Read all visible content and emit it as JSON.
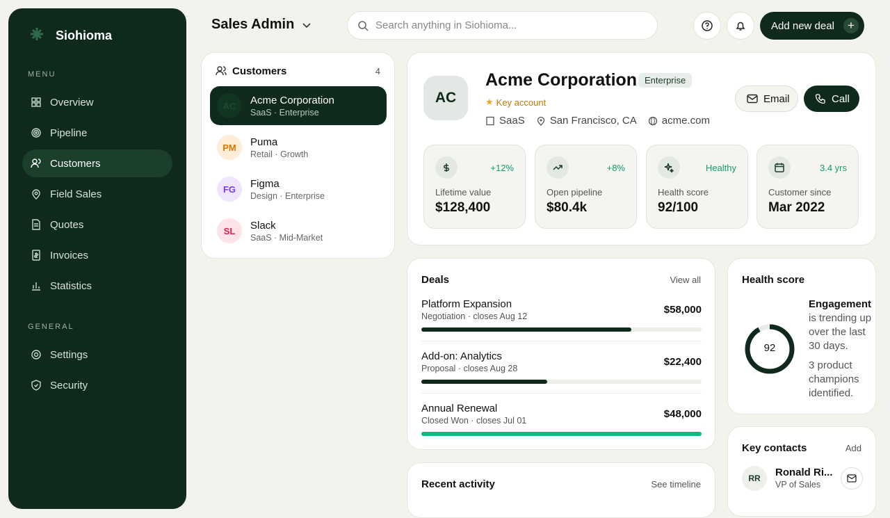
{
  "sidebar": {
    "brand": "Siohioma",
    "menu_label": "MENU",
    "menu": [
      "Overview",
      "Pipeline",
      "Customers",
      "Field Sales",
      "Quotes",
      "Invoices",
      "Statistics"
    ],
    "active": 2,
    "general_label": "GENERAL",
    "general": [
      "Settings",
      "Security"
    ]
  },
  "header": {
    "title": "Sales Admin",
    "search_placeholder": "Search anything in Siohioma...",
    "add_button": "Add new deal"
  },
  "customers": {
    "title": "Customers",
    "count": "4",
    "items": [
      {
        "initials": "AC",
        "name": "Acme Corporation",
        "meta": "SaaS · Enterprise",
        "avatar_bg": "#123522",
        "avatar_color": "#1d4a31"
      },
      {
        "initials": "PM",
        "name": "Puma",
        "meta": "Retail · Growth",
        "avatar_bg": "#fdecd6",
        "avatar_color": "#d97706"
      },
      {
        "initials": "FG",
        "name": "Figma",
        "meta": "Design · Enterprise",
        "avatar_bg": "#efe6fb",
        "avatar_color": "#7c3aed"
      },
      {
        "initials": "SL",
        "name": "Slack",
        "meta": "SaaS · Mid-Market",
        "avatar_bg": "#fde3e8",
        "avatar_color": "#e11d48"
      }
    ]
  },
  "profile": {
    "initials": "AC",
    "name": "Acme Corporation",
    "tier": "Enterprise",
    "badge": "Key account",
    "industry": "SaaS",
    "location": "San Francisco, CA",
    "website": "acme.com",
    "email": "Email",
    "call": "Call",
    "stats": [
      {
        "change": "+12%",
        "label": "Lifetime value",
        "value": "$128,400"
      },
      {
        "change": "+8%",
        "label": "Open pipeline",
        "value": "$80.4k"
      },
      {
        "change": "Healthy",
        "label": "Health score",
        "value": "92/100"
      },
      {
        "change": "3.4 yrs",
        "label": "Customer since",
        "value": "Mar 2022"
      }
    ]
  },
  "deals": {
    "title": "Deals",
    "link": "View all",
    "items": [
      {
        "name": "Platform Expansion",
        "meta": "Negotiation · closes Aug 12",
        "amount": "$58,000",
        "progress": 75,
        "bar_color": "#0f2a1c"
      },
      {
        "name": "Add-on: Analytics",
        "meta": "Proposal · closes Aug 28",
        "amount": "$22,400",
        "progress": 45,
        "bar_color": "#0f2a1c"
      },
      {
        "name": "Annual Renewal",
        "meta": "Closed Won · closes Jul 01",
        "amount": "$48,000",
        "progress": 100,
        "bar_color": "#10b981"
      }
    ]
  },
  "health": {
    "title": "Health score",
    "score": 92,
    "max": 100,
    "engagement_label": "Engagement",
    "engagement_text": "is trending up over the last 30 days.",
    "champions": "3 product champions identified."
  },
  "contacts": {
    "title": "Key contacts",
    "link": "Add",
    "items": [
      {
        "initials": "RR",
        "name": "Ronald Ri...",
        "role": "VP of Sales"
      }
    ]
  },
  "activity": {
    "title": "Recent activity",
    "link": "See timeline"
  }
}
